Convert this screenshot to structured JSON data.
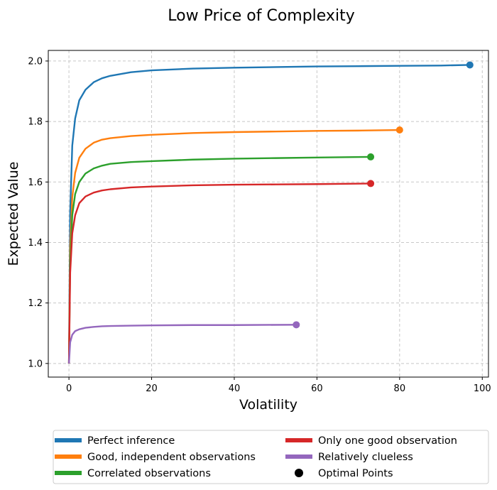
{
  "chart_data": {
    "type": "line",
    "title": "Low Price of Complexity",
    "xlabel": "Volatility",
    "ylabel": "Expected Value",
    "xlim": [
      -5,
      101.5
    ],
    "ylim": [
      0.955,
      2.035
    ],
    "xticks": [
      0,
      20,
      40,
      60,
      80,
      100
    ],
    "yticks": [
      1.0,
      1.2,
      1.4,
      1.6,
      1.8,
      2.0
    ],
    "grid": true,
    "legend_position": "bottom",
    "series": [
      {
        "name": "Perfect inference",
        "color": "#1f77b4",
        "x": [
          0,
          0.3,
          0.8,
          1.5,
          2.5,
          4,
          6,
          8,
          10,
          15,
          20,
          30,
          40,
          50,
          60,
          70,
          80,
          90,
          97
        ],
        "y": [
          1.0,
          1.5,
          1.72,
          1.81,
          1.87,
          1.905,
          1.93,
          1.943,
          1.951,
          1.963,
          1.969,
          1.975,
          1.978,
          1.98,
          1.982,
          1.983,
          1.984,
          1.985,
          1.987
        ],
        "optimal": {
          "x": 97,
          "y": 1.987
        }
      },
      {
        "name": "Good, independent observations",
        "color": "#ff7f0e",
        "x": [
          0,
          0.3,
          0.8,
          1.5,
          2.5,
          4,
          6,
          8,
          10,
          15,
          20,
          30,
          40,
          50,
          60,
          70,
          80
        ],
        "y": [
          1.0,
          1.38,
          1.55,
          1.63,
          1.68,
          1.71,
          1.73,
          1.74,
          1.745,
          1.752,
          1.756,
          1.762,
          1.765,
          1.767,
          1.769,
          1.77,
          1.772
        ],
        "optimal": {
          "x": 80,
          "y": 1.772
        }
      },
      {
        "name": "Correlated observations",
        "color": "#2ca02c",
        "x": [
          0,
          0.3,
          0.8,
          1.5,
          2.5,
          4,
          6,
          8,
          10,
          15,
          20,
          30,
          40,
          50,
          60,
          73
        ],
        "y": [
          1.0,
          1.33,
          1.49,
          1.56,
          1.6,
          1.628,
          1.645,
          1.654,
          1.66,
          1.666,
          1.669,
          1.674,
          1.677,
          1.679,
          1.681,
          1.683
        ],
        "optimal": {
          "x": 73,
          "y": 1.683
        }
      },
      {
        "name": "Only one good observation",
        "color": "#d62728",
        "x": [
          0,
          0.3,
          0.8,
          1.5,
          2.5,
          4,
          6,
          8,
          10,
          15,
          20,
          30,
          40,
          50,
          60,
          73
        ],
        "y": [
          1.0,
          1.3,
          1.43,
          1.49,
          1.53,
          1.552,
          1.565,
          1.572,
          1.576,
          1.582,
          1.585,
          1.589,
          1.591,
          1.592,
          1.593,
          1.595
        ],
        "optimal": {
          "x": 73,
          "y": 1.595
        }
      },
      {
        "name": "Relatively clueless",
        "color": "#9467bd",
        "x": [
          0,
          0.3,
          0.8,
          1.5,
          2.5,
          4,
          6,
          8,
          10,
          15,
          20,
          30,
          40,
          55
        ],
        "y": [
          1.0,
          1.07,
          1.095,
          1.107,
          1.113,
          1.118,
          1.121,
          1.123,
          1.124,
          1.125,
          1.126,
          1.127,
          1.127,
          1.128
        ],
        "optimal": {
          "x": 55,
          "y": 1.128
        }
      }
    ],
    "markers_legend": "Optimal Points"
  }
}
